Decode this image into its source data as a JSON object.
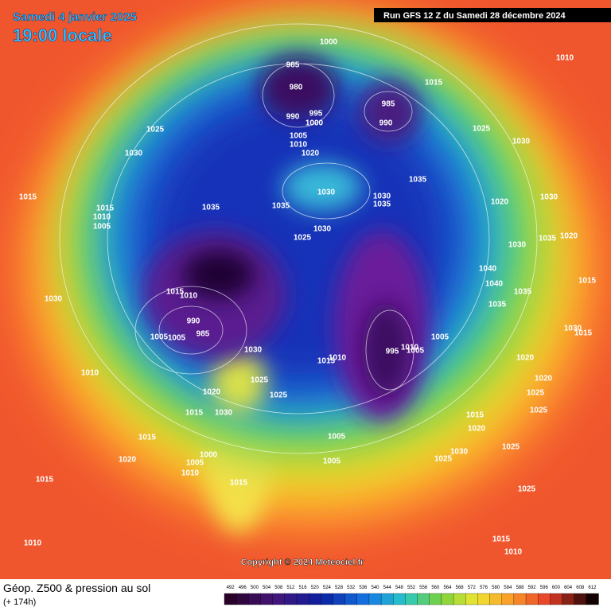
{
  "header": {
    "date": "Samedi 4 janvier 2025",
    "time": "19:00 locale",
    "run": "Run GFS 12 Z du Samedi 28 décembre 2024"
  },
  "copyright": "Copyright © 2024 Meteociel.fr",
  "footer": {
    "title": "Géop. Z500 & pression au sol",
    "lead": "(+ 174h)"
  },
  "scale": {
    "values": [
      492,
      496,
      500,
      504,
      508,
      512,
      516,
      520,
      524,
      528,
      532,
      536,
      540,
      544,
      548,
      552,
      556,
      560,
      564,
      568,
      572,
      576,
      580,
      584,
      588,
      592,
      596,
      600,
      604,
      608,
      612
    ]
  },
  "isobar_labels": [
    "1000",
    "1010",
    "985",
    "980",
    "1015",
    "985",
    "990",
    "995",
    "1000",
    "990",
    "1025",
    "1025",
    "1005",
    "1010",
    "1030",
    "1030",
    "1020",
    "1035",
    "1030",
    "1030",
    "1035",
    "1015",
    "1030",
    "1020",
    "1015",
    "1035",
    "1035",
    "1010",
    "1005",
    "1030",
    "1025",
    "1035",
    "1020",
    "1030",
    "1040",
    "1040",
    "1015",
    "1010",
    "1035",
    "1015",
    "1030",
    "1035",
    "990",
    "985",
    "1005",
    "1005",
    "1005",
    "995",
    "1010",
    "1005",
    "1030",
    "1015",
    "1010",
    "1030",
    "1015",
    "1020",
    "1010",
    "1025",
    "1020",
    "1020",
    "1025",
    "1025",
    "1015",
    "1030",
    "1025",
    "1015",
    "1020",
    "1015",
    "1005",
    "1000",
    "1030",
    "1025",
    "1025",
    "1005",
    "1020",
    "1005",
    "1010",
    "1015",
    "1015",
    "1025",
    "1015",
    "1010",
    "1010"
  ]
}
